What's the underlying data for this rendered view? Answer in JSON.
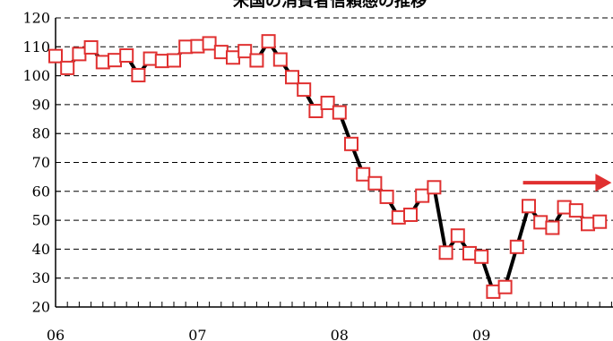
{
  "chart_data": {
    "type": "line",
    "title": "米国の消費者信頼感の推移",
    "xlabel": "",
    "ylabel": "",
    "ylim": [
      20,
      120
    ],
    "yticks": [
      20,
      30,
      40,
      50,
      60,
      70,
      80,
      90,
      100,
      110,
      120
    ],
    "x_tick_labels": [
      "06",
      "07",
      "08",
      "09"
    ],
    "x_range_months": [
      "2006-01",
      "2009-12"
    ],
    "grid": "horizontal-dashed",
    "legend": "none",
    "series": [
      {
        "marker": "square",
        "color_line": "#000000",
        "color_marker": "#e03030",
        "x": [
          "2006-01",
          "2006-02",
          "2006-03",
          "2006-04",
          "2006-05",
          "2006-06",
          "2006-07",
          "2006-08",
          "2006-09",
          "2006-10",
          "2006-11",
          "2006-12",
          "2007-01",
          "2007-02",
          "2007-03",
          "2007-04",
          "2007-05",
          "2007-06",
          "2007-07",
          "2007-08",
          "2007-09",
          "2007-10",
          "2007-11",
          "2007-12",
          "2008-01",
          "2008-02",
          "2008-03",
          "2008-04",
          "2008-05",
          "2008-06",
          "2008-07",
          "2008-08",
          "2008-09",
          "2008-10",
          "2008-11",
          "2008-12",
          "2009-01",
          "2009-02",
          "2009-03",
          "2009-04",
          "2009-05",
          "2009-06",
          "2009-07",
          "2009-08",
          "2009-09",
          "2009-10",
          "2009-11"
        ],
        "values": [
          106.8,
          102.7,
          107.5,
          109.8,
          104.7,
          105.4,
          107.0,
          100.2,
          105.9,
          105.1,
          105.3,
          110.0,
          110.2,
          111.2,
          108.2,
          106.3,
          108.5,
          105.3,
          111.9,
          105.6,
          99.5,
          95.2,
          87.8,
          90.6,
          87.3,
          76.4,
          65.9,
          62.8,
          58.1,
          51.0,
          51.9,
          58.5,
          61.4,
          38.8,
          44.7,
          38.6,
          37.4,
          25.3,
          26.9,
          40.8,
          54.9,
          49.3,
          47.4,
          54.5,
          53.4,
          48.7,
          49.5
        ]
      }
    ],
    "annotations": [
      {
        "type": "arrow",
        "color": "#e03030",
        "direction": "right",
        "from": [
          "2009-03",
          63
        ],
        "to": [
          "2009-12",
          63
        ]
      }
    ]
  }
}
